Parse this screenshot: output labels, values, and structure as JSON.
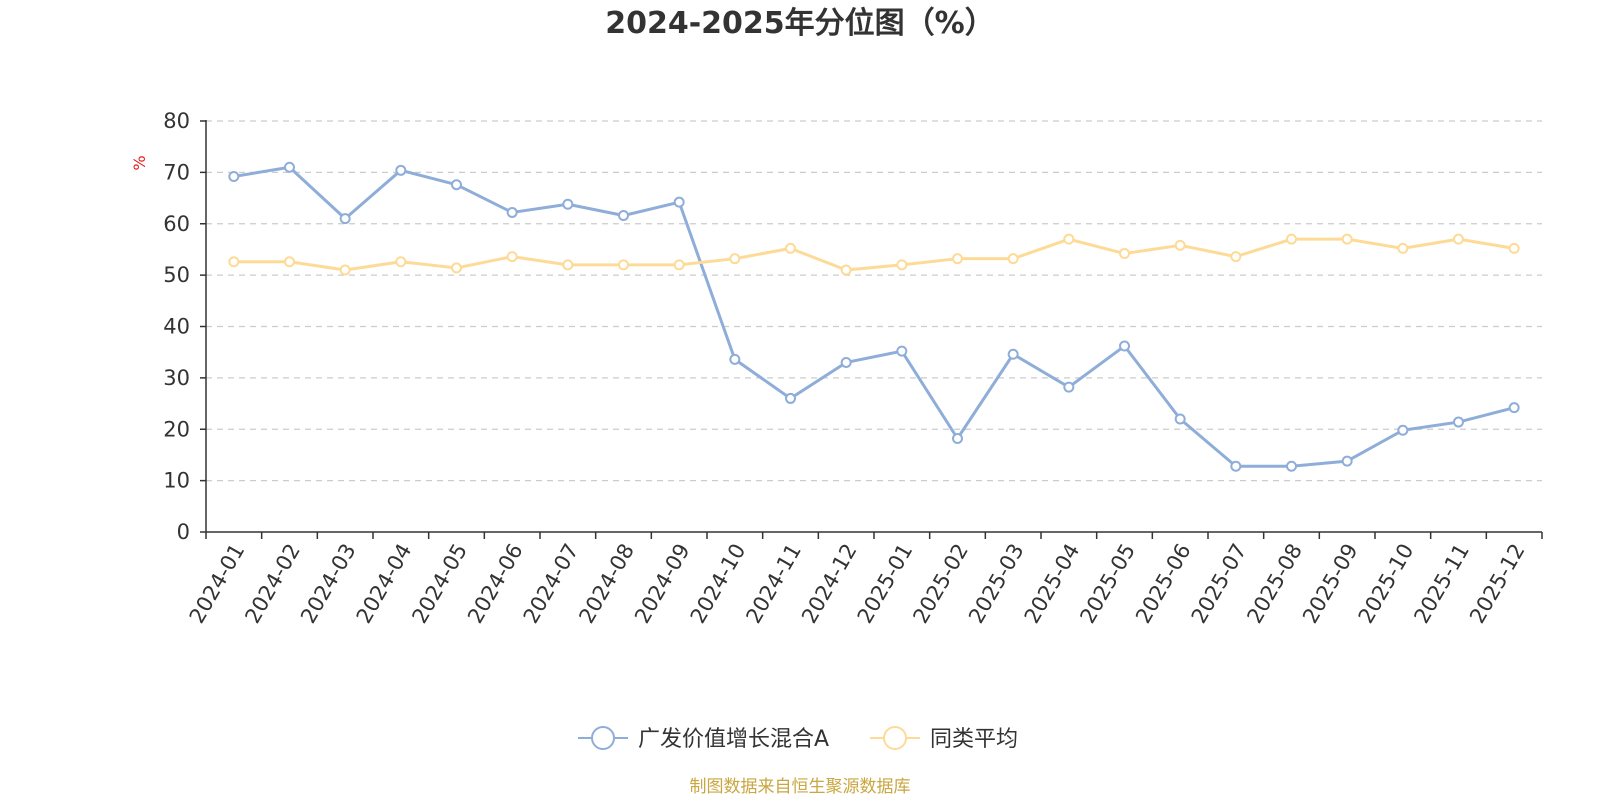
{
  "chart_data": {
    "type": "line",
    "title": "2024-2025年分位图（%）",
    "ylabel": "%",
    "xlabel": "",
    "ylim": [
      0,
      80
    ],
    "yticks": [
      0,
      10,
      20,
      30,
      40,
      50,
      60,
      70,
      80
    ],
    "grid": true,
    "legend_position": "bottom-center",
    "categories": [
      "2024-01",
      "2024-02",
      "2024-03",
      "2024-04",
      "2024-05",
      "2024-06",
      "2024-07",
      "2024-08",
      "2024-09",
      "2024-10",
      "2024-11",
      "2024-12",
      "2025-01",
      "2025-02",
      "2025-03",
      "2025-04",
      "2025-05",
      "2025-06",
      "2025-07",
      "2025-08",
      "2025-09",
      "2025-10",
      "2025-11",
      "2025-12"
    ],
    "series": [
      {
        "name": "广发价值增长混合A",
        "color": "#8eadd8",
        "values": [
          69.2,
          71.0,
          61.0,
          70.4,
          67.6,
          62.2,
          63.8,
          61.6,
          64.2,
          33.6,
          26.0,
          33.0,
          35.2,
          18.2,
          34.6,
          28.2,
          36.2,
          22.0,
          12.8,
          12.8,
          13.8,
          19.8,
          21.4,
          24.2
        ]
      },
      {
        "name": "同类平均",
        "color": "#fddb97",
        "values": [
          52.6,
          52.6,
          51.0,
          52.6,
          51.4,
          53.6,
          52.0,
          52.0,
          52.0,
          53.2,
          55.2,
          51.0,
          52.0,
          53.2,
          53.2,
          57.0,
          54.2,
          55.8,
          53.6,
          57.0,
          57.0,
          55.2,
          57.0,
          55.2
        ]
      }
    ]
  },
  "footer": {
    "source": "制图数据来自恒生聚源数据库",
    "source_color": "#c9a640"
  },
  "colors": {
    "unit_label": "#e02020",
    "axis": "#333333",
    "grid": "#cccccc"
  }
}
